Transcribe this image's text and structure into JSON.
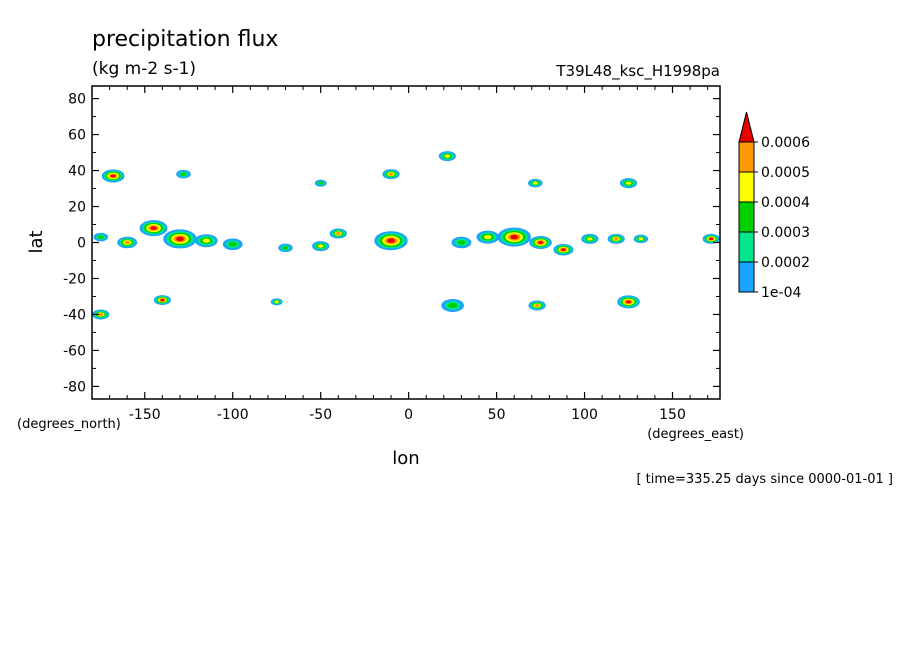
{
  "chart_data": {
    "type": "contour",
    "title": "precipitation flux",
    "units": "(kg m-2 s-1)",
    "dataset": "T39L48_ksc_H1998pa",
    "xlabel": "lon",
    "ylabel": "lat",
    "x_units": "(degrees_east)",
    "y_units": "(degrees_north)",
    "time_note": "[ time=335.25 days since 0000-01-01 ]",
    "xlim": [
      -180,
      177
    ],
    "ylim": [
      -87,
      87
    ],
    "x_ticks": [
      -150,
      -100,
      -50,
      0,
      50,
      100,
      150
    ],
    "y_ticks": [
      80,
      60,
      40,
      20,
      0,
      -20,
      -40,
      -60,
      -80
    ],
    "colorbar": {
      "levels": [
        "1e-04",
        "0.0002",
        "0.0003",
        "0.0004",
        "0.0005",
        "0.0006"
      ],
      "colors": [
        "#1aa3ff",
        "#00e68c",
        "#00d000",
        "#ffff00",
        "#ff9900",
        "#e60000"
      ]
    },
    "features": [
      {
        "lon": -168,
        "lat": 37,
        "max_level": 6,
        "r": 8
      },
      {
        "lon": -145,
        "lat": 8,
        "max_level": 6,
        "r": 10
      },
      {
        "lon": -130,
        "lat": 2,
        "max_level": 6,
        "r": 12
      },
      {
        "lon": -115,
        "lat": 1,
        "max_level": 4,
        "r": 8
      },
      {
        "lon": -100,
        "lat": -1,
        "max_level": 3,
        "r": 7
      },
      {
        "lon": -160,
        "lat": 0,
        "max_level": 5,
        "r": 7
      },
      {
        "lon": -175,
        "lat": 3,
        "max_level": 3,
        "r": 5
      },
      {
        "lon": -140,
        "lat": -32,
        "max_level": 6,
        "r": 6
      },
      {
        "lon": -175,
        "lat": -40,
        "max_level": 5,
        "r": 6
      },
      {
        "lon": -128,
        "lat": 38,
        "max_level": 3,
        "r": 5
      },
      {
        "lon": -75,
        "lat": -33,
        "max_level": 4,
        "r": 4
      },
      {
        "lon": -50,
        "lat": 33,
        "max_level": 3,
        "r": 4
      },
      {
        "lon": -50,
        "lat": -2,
        "max_level": 4,
        "r": 6
      },
      {
        "lon": -40,
        "lat": 5,
        "max_level": 5,
        "r": 6
      },
      {
        "lon": -70,
        "lat": -3,
        "max_level": 3,
        "r": 5
      },
      {
        "lon": -10,
        "lat": 1,
        "max_level": 6,
        "r": 12
      },
      {
        "lon": -10,
        "lat": 38,
        "max_level": 5,
        "r": 6
      },
      {
        "lon": 22,
        "lat": 48,
        "max_level": 4,
        "r": 6
      },
      {
        "lon": 25,
        "lat": -35,
        "max_level": 3,
        "r": 8
      },
      {
        "lon": 30,
        "lat": 0,
        "max_level": 3,
        "r": 7
      },
      {
        "lon": 45,
        "lat": 3,
        "max_level": 4,
        "r": 8
      },
      {
        "lon": 60,
        "lat": 3,
        "max_level": 6,
        "r": 12
      },
      {
        "lon": 75,
        "lat": 0,
        "max_level": 6,
        "r": 8
      },
      {
        "lon": 88,
        "lat": -4,
        "max_level": 6,
        "r": 7
      },
      {
        "lon": 73,
        "lat": -35,
        "max_level": 5,
        "r": 6
      },
      {
        "lon": 72,
        "lat": 33,
        "max_level": 4,
        "r": 5
      },
      {
        "lon": 103,
        "lat": 2,
        "max_level": 4,
        "r": 6
      },
      {
        "lon": 118,
        "lat": 2,
        "max_level": 5,
        "r": 6
      },
      {
        "lon": 132,
        "lat": 2,
        "max_level": 4,
        "r": 5
      },
      {
        "lon": 125,
        "lat": -33,
        "max_level": 6,
        "r": 8
      },
      {
        "lon": 125,
        "lat": 33,
        "max_level": 4,
        "r": 6
      },
      {
        "lon": 172,
        "lat": 2,
        "max_level": 6,
        "r": 6
      }
    ]
  }
}
